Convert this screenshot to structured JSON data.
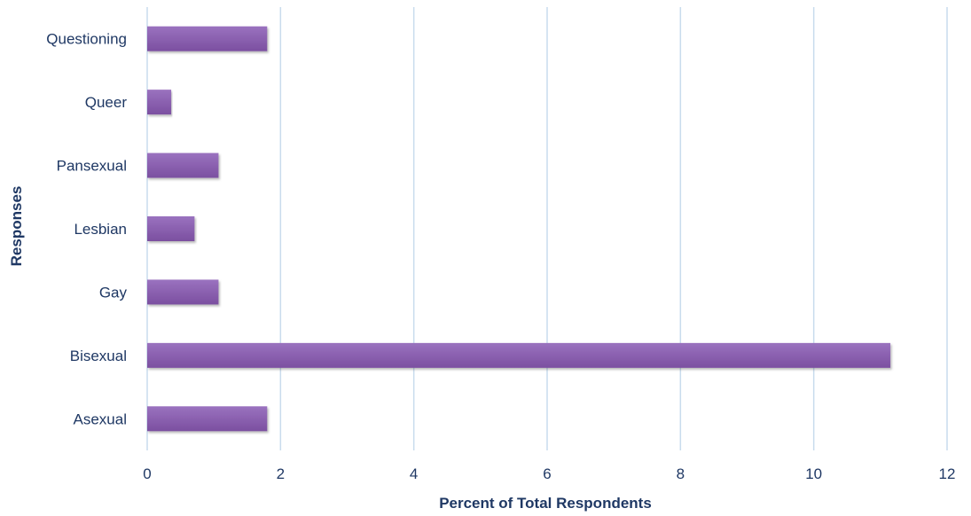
{
  "chart_data": {
    "type": "bar",
    "orientation": "horizontal",
    "categories": [
      "Asexual",
      "Bisexual",
      "Gay",
      "Lesbian",
      "Pansexual",
      "Queer",
      "Questioning"
    ],
    "values": [
      1.8,
      11.15,
      1.07,
      0.71,
      1.07,
      0.36,
      1.8
    ],
    "xlabel": "Percent of Total Respondents",
    "ylabel": "Responses",
    "xlim": [
      0,
      12
    ],
    "xticks": [
      "0",
      "2",
      "4",
      "6",
      "8",
      "10",
      "12"
    ],
    "grid": "vertical",
    "legend": "none",
    "colors": {
      "bar": "#7b4fa0",
      "bar_highlight": "#9a72bf",
      "grid": "#c9dced",
      "text": "#1f3864"
    }
  }
}
